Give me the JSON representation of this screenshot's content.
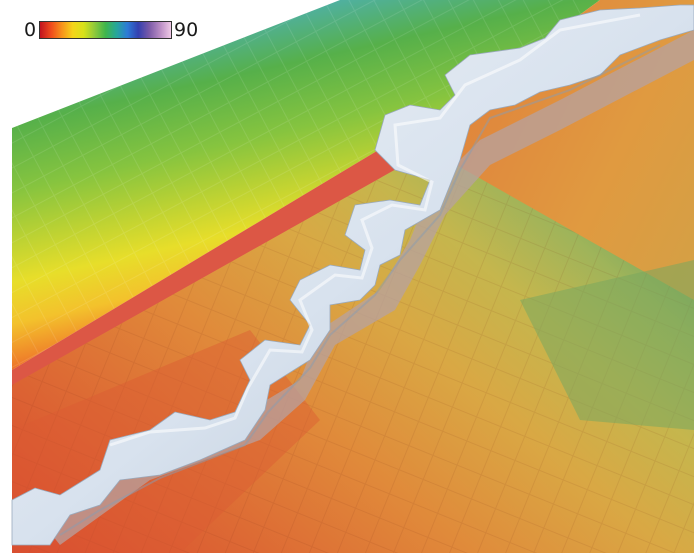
{
  "colorbar": {
    "min_label": "0",
    "max_label": "90",
    "colors": [
      "#c1121f",
      "#ef4a1d",
      "#f7921b",
      "#f5d41a",
      "#d8e21a",
      "#8fc93b",
      "#3fb54b",
      "#26a69a",
      "#2c7bd6",
      "#3340b0",
      "#7a5aa8",
      "#b98cc4",
      "#efc9e6"
    ]
  },
  "scene": {
    "description_icons": [
      "terrain-surface",
      "ice-ridge"
    ],
    "band_colors": [
      "#d22a1f",
      "#e8562a",
      "#f08a2a",
      "#f3c22c",
      "#e7de2a",
      "#bcd233",
      "#86c43f",
      "#56b04a",
      "#4fb0a9",
      "#5dc0d4"
    ],
    "lower_field_colors": [
      "#d8452f",
      "#dd6a34",
      "#e08a3a",
      "#d9a844",
      "#c5b64d",
      "#9fb45a",
      "#7aa85f"
    ],
    "ridge_color": "#d8e2ee",
    "ridge_shadow": "#b7a2a0"
  }
}
